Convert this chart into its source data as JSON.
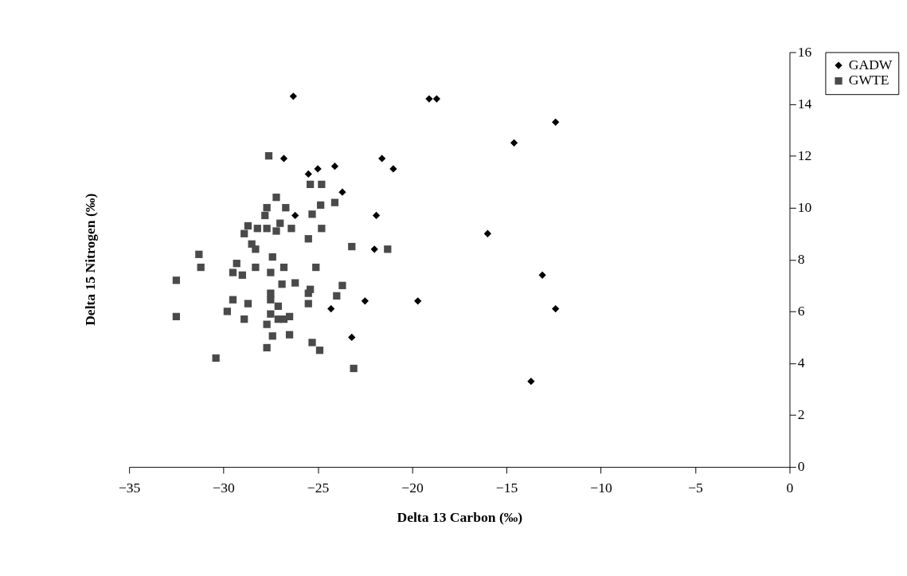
{
  "chart_data": {
    "type": "scatter",
    "xlabel": "Delta 13 Carbon (‰)",
    "ylabel": "Delta 15 Nitrogen (‰)",
    "xlim": [
      -35,
      0
    ],
    "xticks": [
      -35,
      -30,
      -25,
      -20,
      -15,
      -10,
      -5,
      0
    ],
    "ylim": [
      0,
      16
    ],
    "yticks": [
      0,
      2,
      4,
      6,
      8,
      10,
      12,
      14,
      16
    ],
    "grid": false,
    "legend": "right",
    "series": [
      {
        "name": "GADW",
        "color": "#000000",
        "marker": "diamond",
        "x": [
          -26.3,
          -19.1,
          -18.7,
          -12.4,
          -14.6,
          -26.8,
          -21.6,
          -21.0,
          -24.1,
          -25.0,
          -25.5,
          -23.7,
          -26.2,
          -21.9,
          -16.0,
          -22.0,
          -13.1,
          -24.3,
          -22.5,
          -19.7,
          -12.4,
          -23.2,
          -13.7
        ],
        "values": [
          14.3,
          14.2,
          14.2,
          13.3,
          12.5,
          11.9,
          11.9,
          11.5,
          11.6,
          11.5,
          11.3,
          10.6,
          9.7,
          9.7,
          9.0,
          8.4,
          7.4,
          6.1,
          6.4,
          6.4,
          6.1,
          5.0,
          3.3
        ]
      },
      {
        "name": "GWTE",
        "color": "#4a4a4a",
        "marker": "square",
        "x": [
          -27.6,
          -25.4,
          -24.8,
          -27.2,
          -24.1,
          -27.7,
          -26.7,
          -24.85,
          -27.8,
          -25.3,
          -28.7,
          -28.9,
          -28.2,
          -27.7,
          -27.0,
          -27.2,
          -26.4,
          -24.8,
          -25.5,
          -23.2,
          -21.3,
          -28.5,
          -28.3,
          -31.3,
          -31.2,
          -29.3,
          -29.5,
          -29.0,
          -28.3,
          -27.4,
          -27.5,
          -26.8,
          -25.1,
          -32.5,
          -26.9,
          -26.2,
          -23.7,
          -25.4,
          -25.5,
          -24.0,
          -27.5,
          -27.5,
          -27.1,
          -29.5,
          -28.7,
          -25.5,
          -29.8,
          -32.5,
          -28.9,
          -27.5,
          -27.7,
          -27.1,
          -26.8,
          -26.5,
          -27.4,
          -26.5,
          -27.7,
          -25.3,
          -24.9,
          -30.4,
          -23.1
        ],
        "values": [
          12.0,
          10.9,
          10.9,
          10.4,
          10.2,
          10.0,
          10.0,
          10.1,
          9.7,
          9.75,
          9.3,
          9.0,
          9.2,
          9.2,
          9.4,
          9.1,
          9.2,
          9.2,
          8.8,
          8.5,
          8.4,
          8.6,
          8.4,
          8.2,
          7.7,
          7.85,
          7.5,
          7.4,
          7.7,
          8.1,
          7.5,
          7.7,
          7.7,
          7.2,
          7.05,
          7.1,
          7.0,
          6.85,
          6.7,
          6.6,
          6.7,
          6.45,
          6.2,
          6.45,
          6.3,
          6.3,
          6.0,
          5.8,
          5.7,
          5.9,
          5.5,
          5.7,
          5.7,
          5.8,
          5.05,
          5.1,
          4.6,
          4.8,
          4.5,
          4.2,
          3.8
        ]
      }
    ]
  }
}
